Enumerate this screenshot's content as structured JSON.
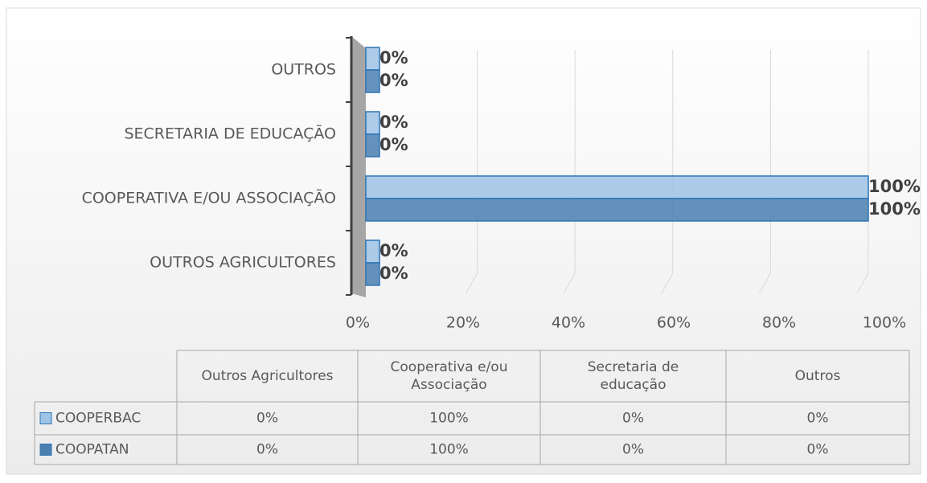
{
  "chart_data": {
    "type": "bar3d",
    "categories": [
      "OUTROS AGRICULTORES",
      "COOPERATIVA E/OU ASSOCIAÇÃO",
      "SECRETARIA DE EDUCAÇÃO",
      "OUTROS"
    ],
    "series": [
      {
        "name": "COOPERBAC",
        "color": "#9dc3e6",
        "values": [
          0,
          100,
          0,
          0
        ],
        "value_labels": [
          "0%",
          "100%",
          "0%",
          "0%"
        ]
      },
      {
        "name": "COOPATAN",
        "color": "#4a7fb0",
        "values": [
          0,
          100,
          0,
          0
        ],
        "value_labels": [
          "0%",
          "100%",
          "0%",
          "0%"
        ]
      }
    ],
    "xlim": [
      0,
      100
    ],
    "xticks": [
      {
        "value": 0,
        "label": "0%"
      },
      {
        "value": 20,
        "label": "20%"
      },
      {
        "value": 40,
        "label": "40%"
      },
      {
        "value": 60,
        "label": "60%"
      },
      {
        "value": 80,
        "label": "80%"
      },
      {
        "value": 100,
        "label": "100%"
      }
    ],
    "grid": true,
    "data_table": {
      "categories": [
        "Outros Agricultores",
        "Cooperativa e/ou Associação",
        "Secretaria de educação",
        "Outros"
      ]
    }
  }
}
